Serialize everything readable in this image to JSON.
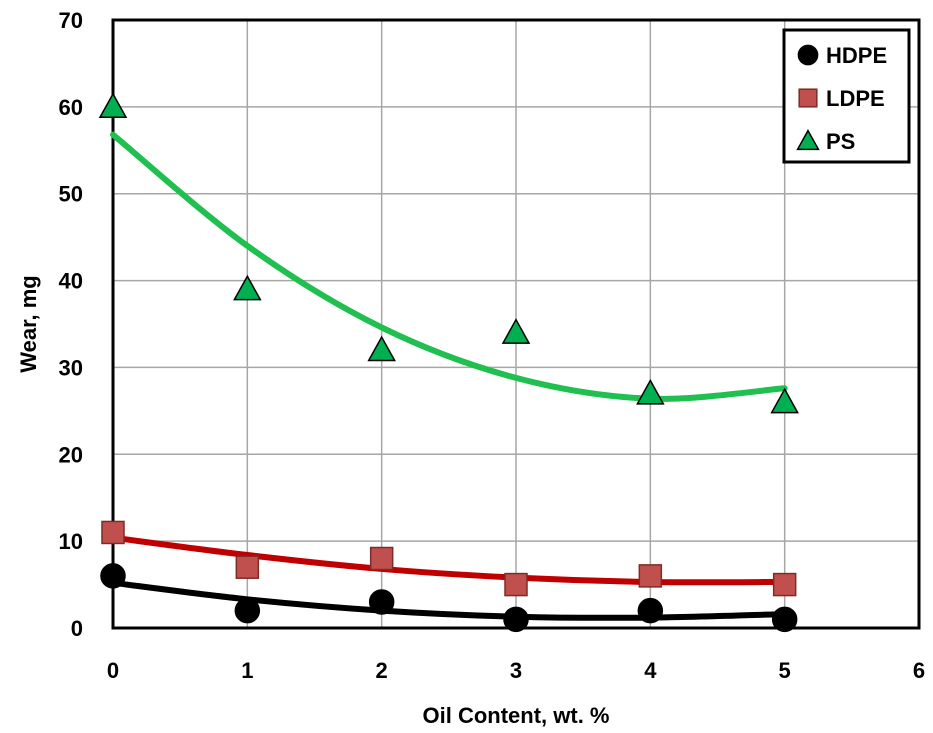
{
  "chart_data": {
    "type": "scatter",
    "title": "",
    "xlabel": "Oil Content, wt. %",
    "ylabel": "Wear, mg",
    "xlim": [
      0,
      6
    ],
    "ylim": [
      0,
      70
    ],
    "x_ticks": [
      "0",
      "1",
      "2",
      "3",
      "4",
      "5",
      "6"
    ],
    "y_ticks": [
      "0",
      "10",
      "20",
      "30",
      "40",
      "50",
      "60",
      "70"
    ],
    "grid": true,
    "legend_position": "top-right",
    "series": [
      {
        "name": "HDPE",
        "marker": "circle",
        "marker_color": "#000000",
        "line_color": "#000000",
        "x": [
          0,
          1,
          2,
          3,
          4,
          5
        ],
        "y": [
          6,
          2,
          3,
          1,
          2,
          1
        ],
        "trend": [
          5.2,
          3.3,
          2.0,
          1.3,
          1.2,
          1.6
        ]
      },
      {
        "name": "LDPE",
        "marker": "square",
        "marker_color": "#c0504d",
        "line_color": "#c00000",
        "x": [
          0,
          1,
          2,
          3,
          4,
          5
        ],
        "y": [
          11,
          7,
          8,
          5,
          6,
          5
        ],
        "trend": [
          10.4,
          8.4,
          6.8,
          5.8,
          5.3,
          5.3
        ]
      },
      {
        "name": "PS",
        "marker": "triangle",
        "marker_color": "#00b050",
        "line_color": "#20c050",
        "x": [
          0,
          1,
          2,
          3,
          4,
          5
        ],
        "y": [
          60,
          39,
          32,
          34,
          27,
          26
        ],
        "trend": [
          56.8,
          44.0,
          34.6,
          28.8,
          26.4,
          27.6
        ]
      }
    ]
  }
}
